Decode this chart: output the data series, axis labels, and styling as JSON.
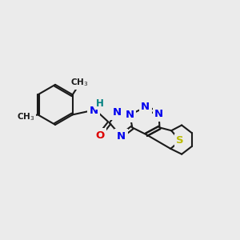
{
  "bg": "#ebebeb",
  "bond_color": "#1a1a1a",
  "N_color": "#0000ee",
  "O_color": "#dd0000",
  "S_color": "#bbbb00",
  "H_color": "#008080",
  "C_color": "#1a1a1a",
  "lw": 1.5,
  "fs": 9.5,
  "fs_small": 8.5,
  "figsize": [
    3.0,
    3.0
  ],
  "dpi": 100,
  "xlim": [
    0,
    10
  ],
  "ylim": [
    1.5,
    9.5
  ]
}
